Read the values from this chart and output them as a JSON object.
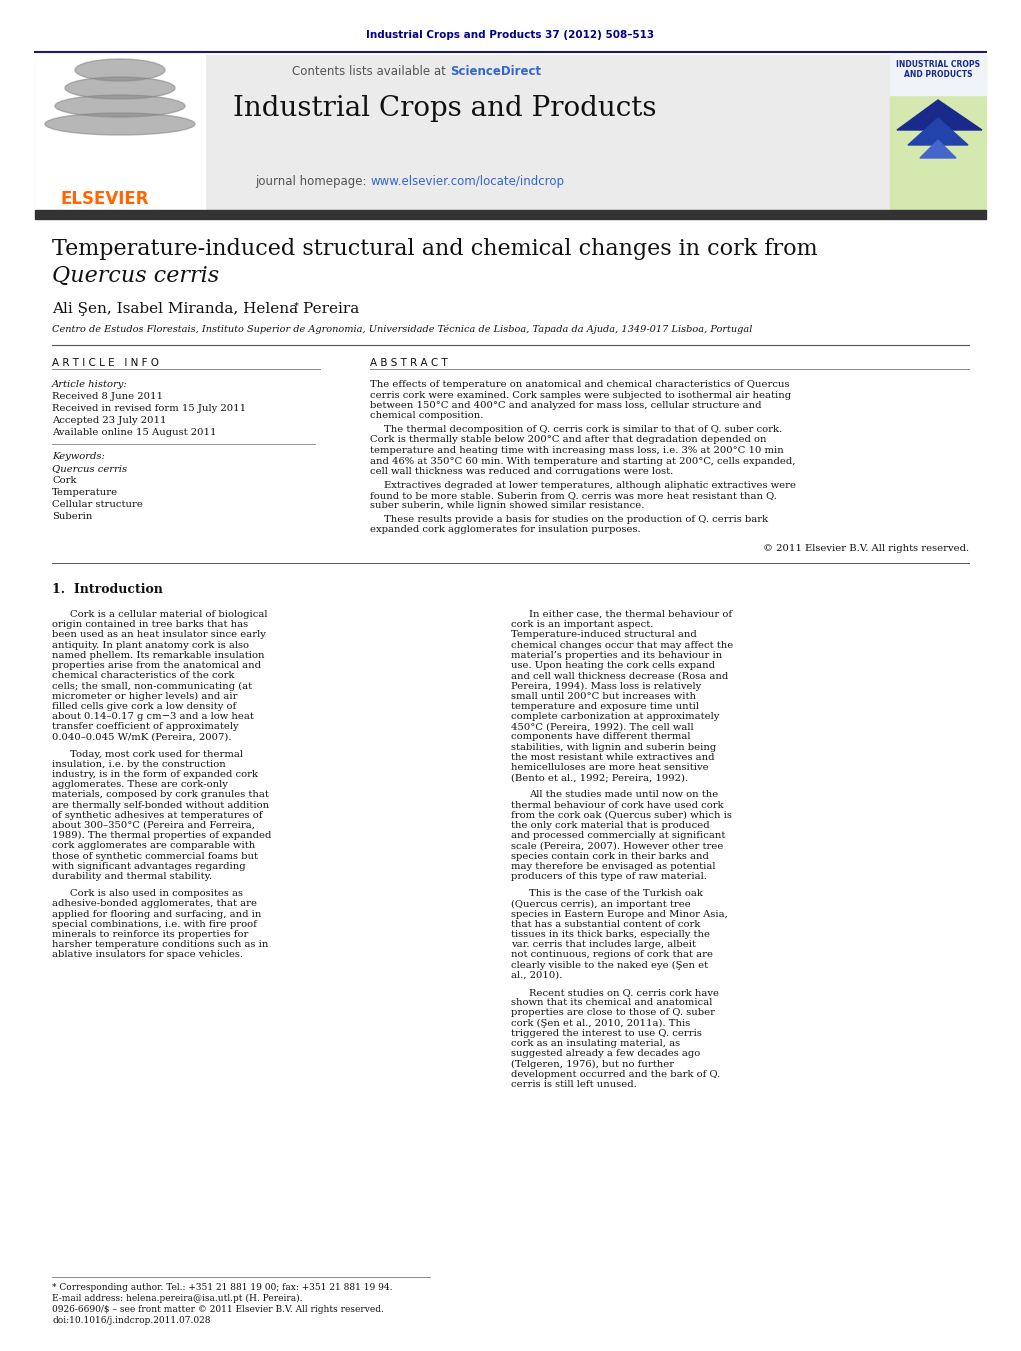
{
  "page_bg": "#ffffff",
  "header_journal_ref": "Industrial Crops and Products 37 (2012) 508–513",
  "header_journal_ref_color": "#00008B",
  "contents_text": "Contents lists available at ",
  "sciencedirect_text": "ScienceDirect",
  "sciencedirect_color": "#3366CC",
  "journal_title": "Industrial Crops and Products",
  "journal_homepage_text": "journal homepage: ",
  "journal_homepage_url": "www.elsevier.com/locate/indcrop",
  "journal_homepage_url_color": "#3366CC",
  "header_bg": "#EBEBEB",
  "dark_bar_color": "#333333",
  "paper_title_line1": "Temperature-induced structural and chemical changes in cork from",
  "paper_title_line2": "Quercus cerris",
  "authors": "Ali Şen, Isabel Miranda, Helena Pereira",
  "affiliation": "Centro de Estudos Florestais, Instituto Superior de Agronomia, Universidade Técnica de Lisboa, Tapada da Ajuda, 1349-017 Lisboa, Portugal",
  "article_history_label": "Article history:",
  "received": "Received 8 June 2011",
  "received_revised": "Received in revised form 15 July 2011",
  "accepted": "Accepted 23 July 2011",
  "available_online": "Available online 15 August 2011",
  "keywords_label": "Keywords:",
  "keywords": [
    "Quercus cerris",
    "Cork",
    "Temperature",
    "Cellular structure",
    "Suberin"
  ],
  "abstract_para1": "The effects of temperature on anatomical and chemical characteristics of Quercus cerris cork were examined. Cork samples were subjected to isothermal air heating between 150°C and 400°C and analyzed for mass loss, cellular structure and chemical composition.",
  "abstract_para2": "The thermal decomposition of Q. cerris cork is similar to that of Q. suber cork. Cork is thermally stable below 200°C and after that degradation depended on temperature and heating time with increasing mass loss, i.e. 3% at 200°C 10 min and 46% at 350°C 60 min. With temperature and starting at 200°C, cells expanded, cell wall thickness was reduced and corrugations were lost.",
  "abstract_para3": "Extractives degraded at lower temperatures, although aliphatic extractives were found to be more stable. Suberin from Q. cerris was more heat resistant than Q. suber suberin, while lignin showed similar resistance.",
  "abstract_para4": "These results provide a basis for studies on the production of Q. cerris bark expanded cork agglomerates for insulation purposes.",
  "copyright": "© 2011 Elsevier B.V. All rights reserved.",
  "intro_heading": "1.  Introduction",
  "intro_col1_para1": "Cork is a cellular material of biological origin contained in tree barks that has been used as an heat insulator since early antiquity. In plant anatomy cork is also named phellem. Its remarkable insulation properties arise from the anatomical and chemical characteristics of the cork cells; the small, non-communicating (at micrometer or higher levels) and air filled cells give cork a low density of about 0.14–0.17 g cm−3 and a low heat transfer coefficient of approximately 0.040–0.045 W/mK (Pereira, 2007).",
  "intro_col1_para2": "Today, most cork used for thermal insulation, i.e. by the construction industry, is in the form of expanded cork agglomerates. These are cork-only materials, composed by cork granules that are thermally self-bonded without addition of synthetic adhesives at temperatures of about 300–350°C (Pereira and Ferreira, 1989). The thermal properties of expanded cork agglomerates are comparable with those of synthetic commercial foams but with significant advantages regarding durability and thermal stability.",
  "intro_col1_para3": "Cork is also used in composites as adhesive-bonded agglomerates, that are applied for flooring and surfacing, and in special combinations, i.e. with fire proof minerals to reinforce its properties for harsher temperature conditions such as in ablative insulators for space vehicles.",
  "intro_col2_para1": "In either case, the thermal behaviour of cork is an important aspect. Temperature-induced structural and chemical changes occur that may affect the material’s properties and its behaviour in use. Upon heating the cork cells expand and cell wall thickness decrease (Rosa and Pereira, 1994). Mass loss is relatively small until 200°C but increases with temperature and exposure time until complete carbonization at approximately 450°C (Pereira, 1992). The cell wall components have different thermal stabilities, with lignin and suberin being the most resistant while extractives and hemicelluloses are more heat sensitive (Bento et al., 1992; Pereira, 1992).",
  "intro_col2_para2": "All the studies made until now on the thermal behaviour of cork have used cork from the cork oak (Quercus suber) which is the only cork material that is produced and processed commercially at significant scale (Pereira, 2007). However other tree species contain cork in their barks and may therefore be envisaged as potential producers of this type of raw material.",
  "intro_col2_para3": "This is the case of the Turkish oak (Quercus cerris), an important tree species in Eastern Europe and Minor Asia, that has a substantial content of cork tissues in its thick barks, especially the var. cerris that includes large, albeit not continuous, regions of cork that are clearly visible to the naked eye (Şen et al., 2010).",
  "intro_col2_para4": "Recent studies on Q. cerris cork have shown that its chemical and anatomical properties are close to those of Q. suber cork (Şen et al., 2010, 2011a). This triggered the interest to use Q. cerris cork as an insulating material, as suggested already a few decades ago (Telgeren, 1976), but no further development occurred and the bark of Q. cerris is still left unused.",
  "footnote1": "* Corresponding author. Tel.: +351 21 881 19 00; fax: +351 21 881 19 94.",
  "footnote2": "E-mail address: helena.pereira@isa.utl.pt (H. Pereira).",
  "footnote3": "0926-6690/$ – see front matter © 2011 Elsevier B.V. All rights reserved.",
  "footnote4": "doi:10.1016/j.indcrop.2011.07.028",
  "elsevier_orange": "#FF6600",
  "link_color": "#3366CC",
  "text_color": "#000000"
}
